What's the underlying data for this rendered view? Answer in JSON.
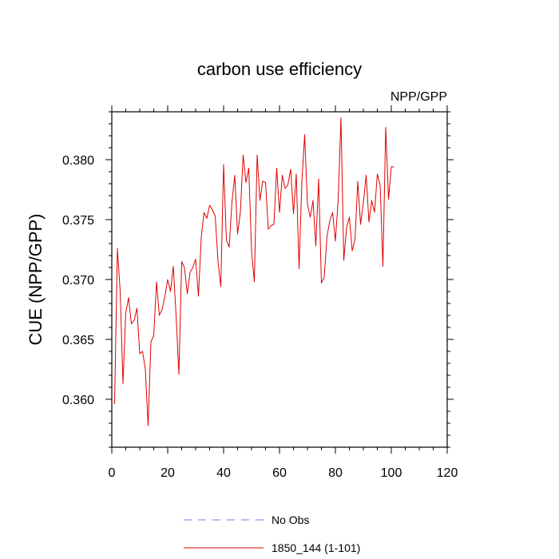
{
  "chart_data": {
    "type": "line",
    "title": "carbon use efficiency",
    "subtitle_right": "NPP/GPP",
    "xlabel": "",
    "ylabel": "CUE  (NPP/GPP)",
    "xlim": [
      0,
      120
    ],
    "ylim": [
      0.356,
      0.384
    ],
    "x_ticks": [
      "0",
      "20",
      "40",
      "60",
      "80",
      "100",
      "120"
    ],
    "y_ticks": [
      "0.360",
      "0.365",
      "0.370",
      "0.375",
      "0.380"
    ],
    "x_tick_values": [
      0,
      20,
      40,
      60,
      80,
      100,
      120
    ],
    "y_tick_values": [
      0.36,
      0.365,
      0.37,
      0.375,
      0.38
    ],
    "grid": false,
    "legend_position": "bottom-center",
    "legend": [
      {
        "label": "No Obs",
        "color": "#7777dd",
        "style": "dashed"
      },
      {
        "label": "1850_144 (1-101)",
        "color": "#e00000",
        "style": "solid"
      }
    ],
    "series": [
      {
        "name": "1850_144 (1-101)",
        "color": "#e00000",
        "x": [
          1,
          2,
          3,
          4,
          5,
          6,
          7,
          8,
          9,
          10,
          11,
          12,
          13,
          14,
          15,
          16,
          17,
          18,
          19,
          20,
          21,
          22,
          23,
          24,
          25,
          26,
          27,
          28,
          29,
          30,
          31,
          32,
          33,
          34,
          35,
          36,
          37,
          38,
          39,
          40,
          41,
          42,
          43,
          44,
          45,
          46,
          47,
          48,
          49,
          50,
          51,
          52,
          53,
          54,
          55,
          56,
          57,
          58,
          59,
          60,
          61,
          62,
          63,
          64,
          65,
          66,
          67,
          68,
          69,
          70,
          71,
          72,
          73,
          74,
          75,
          76,
          77,
          78,
          79,
          80,
          81,
          82,
          83,
          84,
          85,
          86,
          87,
          88,
          89,
          90,
          91,
          92,
          93,
          94,
          95,
          96,
          97,
          98,
          99,
          100,
          101
        ],
        "y": [
          0.3596,
          0.3726,
          0.369,
          0.3613,
          0.3672,
          0.3685,
          0.3663,
          0.3666,
          0.3676,
          0.3638,
          0.364,
          0.3625,
          0.3578,
          0.3648,
          0.3653,
          0.3698,
          0.367,
          0.3675,
          0.3686,
          0.37,
          0.369,
          0.3711,
          0.367,
          0.3621,
          0.3715,
          0.371,
          0.3688,
          0.3706,
          0.371,
          0.3717,
          0.3686,
          0.3735,
          0.3756,
          0.3751,
          0.3762,
          0.3758,
          0.3753,
          0.3715,
          0.3694,
          0.3796,
          0.3733,
          0.3727,
          0.3765,
          0.3787,
          0.3738,
          0.3756,
          0.3804,
          0.3781,
          0.3793,
          0.3724,
          0.3698,
          0.3804,
          0.3766,
          0.3782,
          0.3781,
          0.3742,
          0.3745,
          0.3746,
          0.3793,
          0.3756,
          0.3787,
          0.3776,
          0.3779,
          0.3792,
          0.3755,
          0.3788,
          0.3709,
          0.3781,
          0.3821,
          0.3763,
          0.3752,
          0.3766,
          0.3728,
          0.3784,
          0.3697,
          0.3702,
          0.3736,
          0.3749,
          0.3756,
          0.3732,
          0.3767,
          0.3835,
          0.3716,
          0.3743,
          0.3752,
          0.3724,
          0.3733,
          0.3782,
          0.3746,
          0.3764,
          0.3787,
          0.3748,
          0.3766,
          0.3756,
          0.3788,
          0.3779,
          0.3711,
          0.3827,
          0.3767,
          0.3794,
          0.3794
        ]
      }
    ]
  }
}
